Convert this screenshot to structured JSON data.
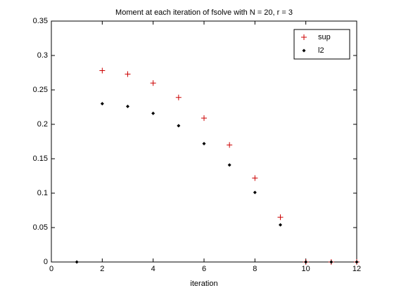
{
  "chart_data": {
    "type": "scatter",
    "title": "Moment at each iteration of fsolve with N = 20, r = 3",
    "x_label": "iteration",
    "x": [
      1,
      2,
      3,
      4,
      5,
      6,
      7,
      8,
      9,
      10,
      11,
      12
    ],
    "series": [
      {
        "name": "sup",
        "color": "#cc0000",
        "marker": "plus",
        "values": [
          null,
          0.278,
          0.273,
          0.26,
          0.239,
          0.209,
          0.17,
          0.122,
          0.065,
          0,
          0,
          0
        ]
      },
      {
        "name": "l2",
        "color": "#000000",
        "marker": "dot",
        "values": [
          0,
          0.23,
          0.226,
          0.216,
          0.198,
          0.172,
          0.141,
          0.101,
          0.054,
          0,
          0,
          0
        ]
      }
    ],
    "xlim": [
      0,
      12
    ],
    "xticks": [
      0,
      2,
      4,
      6,
      8,
      10,
      12
    ],
    "ylim": [
      0,
      0.35
    ],
    "yticks": [
      0,
      0.05,
      0.1,
      0.15,
      0.2,
      0.25,
      0.3,
      0.35
    ],
    "grid": false,
    "legend": "top-right"
  }
}
